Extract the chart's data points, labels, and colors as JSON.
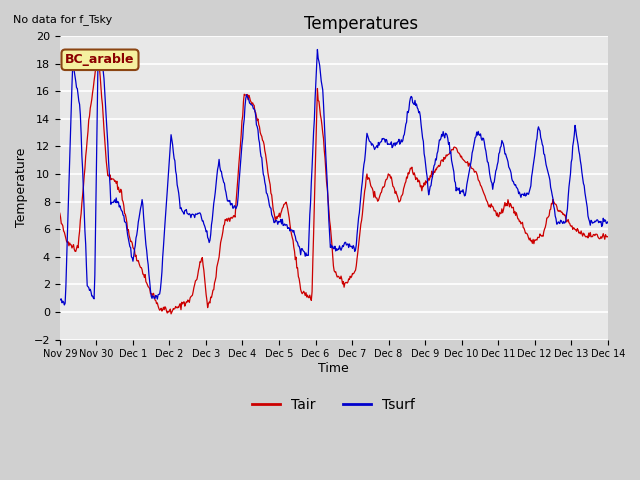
{
  "title": "Temperatures",
  "subtitle": "No data for f_Tsky",
  "box_label": "BC_arable",
  "xlabel": "Time",
  "ylabel": "Temperature",
  "ylim": [
    -2,
    20
  ],
  "tair_color": "#cc0000",
  "tsurf_color": "#0000cc",
  "legend_labels": [
    "Tair",
    "Tsurf"
  ],
  "x_tick_labels": [
    "Nov 29",
    "Nov 30",
    "Dec 1",
    "Dec 2",
    "Dec 3",
    "Dec 4",
    "Dec 5",
    "Dec 6",
    "Dec 7",
    "Dec 8",
    "Dec 9",
    "Dec 10",
    "Dec 11",
    "Dec 12",
    "Dec 13",
    "Dec 14"
  ],
  "tair_x": [
    0,
    0.2,
    0.5,
    0.8,
    1.05,
    1.3,
    1.5,
    1.7,
    1.9,
    2.1,
    2.4,
    2.7,
    3.05,
    3.3,
    3.6,
    3.9,
    4.05,
    4.2,
    4.5,
    4.8,
    5.05,
    5.3,
    5.6,
    5.9,
    6.2,
    6.6,
    6.9,
    7.05,
    7.2,
    7.5,
    7.8,
    8.1,
    8.4,
    8.7,
    9.0,
    9.3,
    9.6,
    9.9,
    10.2,
    10.5,
    10.8,
    11.1,
    11.4,
    11.7,
    12.0,
    12.3,
    12.6,
    12.9,
    13.2,
    13.5,
    13.8,
    14.1,
    14.4,
    14.7,
    15.0
  ],
  "tair_y": [
    7,
    5,
    4.5,
    14,
    19,
    10,
    9.5,
    8.5,
    5.5,
    4.0,
    2.0,
    0.3,
    0.0,
    0.5,
    1.0,
    4.0,
    0.3,
    1.5,
    6.5,
    7.0,
    16.0,
    15.0,
    12.0,
    6.5,
    8.0,
    1.5,
    1.0,
    16.0,
    13.0,
    3.0,
    2.0,
    3.0,
    10.0,
    8.0,
    10.0,
    8.0,
    10.5,
    9.0,
    10.0,
    11.0,
    12.0,
    11.0,
    10.0,
    8.0,
    7.0,
    8.0,
    6.5,
    5.0,
    5.5,
    8.0,
    7.0,
    6.0,
    5.5,
    5.5,
    5.5
  ],
  "tsurf_x": [
    0.0,
    0.15,
    0.35,
    0.55,
    0.75,
    0.95,
    1.05,
    1.2,
    1.4,
    1.6,
    1.8,
    2.0,
    2.25,
    2.5,
    2.75,
    3.05,
    3.3,
    3.6,
    3.85,
    4.1,
    4.35,
    4.6,
    4.85,
    5.1,
    5.35,
    5.6,
    5.85,
    6.1,
    6.4,
    6.6,
    6.8,
    7.05,
    7.2,
    7.4,
    7.65,
    7.85,
    8.1,
    8.4,
    8.6,
    8.85,
    9.1,
    9.4,
    9.6,
    9.85,
    10.1,
    10.4,
    10.6,
    10.85,
    11.1,
    11.4,
    11.6,
    11.85,
    12.1,
    12.4,
    12.6,
    12.85,
    13.1,
    13.4,
    13.6,
    13.85,
    14.1,
    14.5,
    15.0
  ],
  "tsurf_y": [
    1.0,
    0.5,
    18.0,
    15.0,
    2.0,
    1.0,
    19.0,
    17.5,
    8.0,
    8.0,
    6.5,
    3.8,
    8.2,
    1.0,
    1.3,
    13.0,
    7.5,
    7.0,
    7.2,
    5.0,
    11.0,
    8.0,
    7.5,
    15.8,
    14.5,
    9.5,
    6.5,
    6.5,
    5.8,
    4.5,
    4.2,
    19.0,
    16.0,
    4.7,
    4.5,
    5.0,
    4.5,
    12.8,
    11.8,
    12.5,
    12.0,
    12.5,
    15.6,
    14.5,
    8.5,
    12.5,
    13.0,
    9.0,
    8.5,
    13.0,
    12.5,
    9.0,
    12.5,
    9.5,
    8.5,
    8.5,
    13.5,
    9.7,
    6.5,
    6.5,
    13.5,
    6.5,
    6.5
  ]
}
